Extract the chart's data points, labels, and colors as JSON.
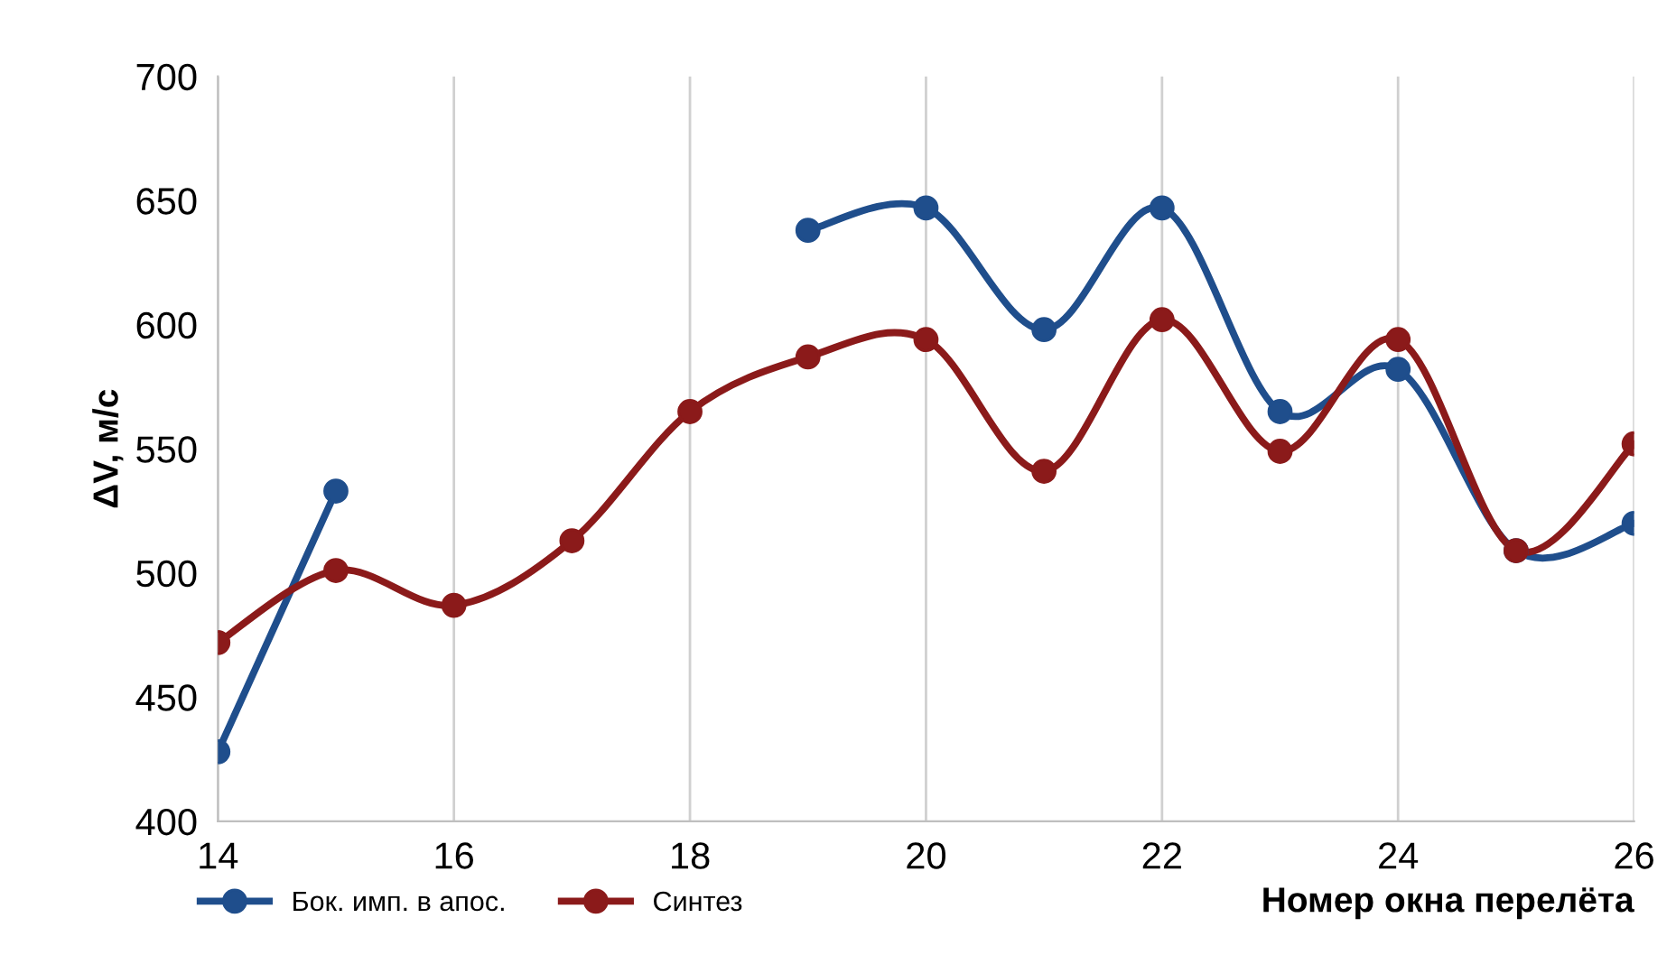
{
  "chart_data": {
    "type": "line",
    "xlabel": "Номер окна перелёта",
    "ylabel": "ΔV, м/с",
    "x": [
      14,
      15,
      16,
      17,
      18,
      19,
      20,
      21,
      22,
      23,
      24,
      25,
      26
    ],
    "series": [
      {
        "name": "Бок. имп. в апос.",
        "color": "#1f4e8c",
        "values": [
          428,
          533,
          null,
          null,
          null,
          638,
          647,
          598,
          647,
          565,
          582,
          509,
          520
        ]
      },
      {
        "name": "Синтез",
        "color": "#8b1a1a",
        "values": [
          472,
          501,
          487,
          513,
          565,
          587,
          594,
          541,
          602,
          549,
          594,
          509,
          552
        ]
      }
    ],
    "xlim": [
      14,
      26
    ],
    "xticks": [
      14,
      16,
      18,
      20,
      22,
      24,
      26
    ],
    "ylim": [
      400,
      700
    ],
    "yticks": [
      400,
      450,
      500,
      550,
      600,
      650,
      700
    ],
    "grid": "x",
    "legend": "bottom left",
    "marker": "circle",
    "line_style": "solid"
  }
}
